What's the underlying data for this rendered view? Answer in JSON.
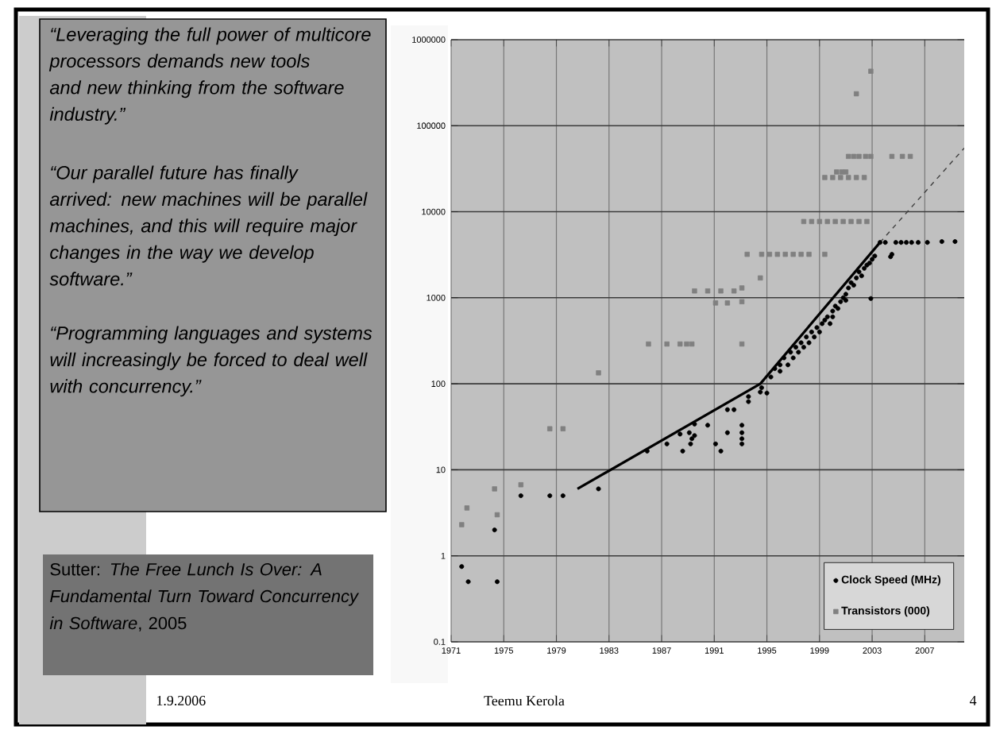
{
  "chart_data": {
    "type": "scatter",
    "xlim": [
      1971,
      2010
    ],
    "ylim": [
      0.1,
      1000000
    ],
    "log": "y",
    "grid": true,
    "legend": "bottom right",
    "xticks": [
      1971,
      1975,
      1979,
      1983,
      1987,
      1991,
      1995,
      1999,
      2003,
      2007
    ],
    "yticks": [
      0.1,
      1,
      10,
      100,
      1000,
      10000,
      100000,
      1000000
    ],
    "series": [
      {
        "name": "Clock Speed (MHz)",
        "marker": "circle",
        "color": "#000000",
        "x": [
          1971.8,
          1972.3,
          1974.3,
          1974.5,
          1976.3,
          1978.5,
          1979.5,
          1982.2,
          1985.9,
          1987.4,
          1988.4,
          1988.6,
          1989.1,
          1989.2,
          1989.3,
          1989.5,
          1989.5,
          1990.5,
          1991.1,
          1991.5,
          1992.0,
          1992.0,
          1992.5,
          1993.1,
          1993.1,
          1993.1,
          1993.1,
          1993.6,
          1993.6,
          1994.5,
          1994.6,
          1995.0,
          1995.3,
          1995.6,
          1996.0,
          1996.0,
          1996.3,
          1996.6,
          1996.8,
          1997.0,
          1997.2,
          1997.4,
          1997.6,
          1997.8,
          1998.0,
          1998.2,
          1998.4,
          1998.6,
          1998.8,
          1999.0,
          1999.2,
          1999.4,
          1999.6,
          1999.8,
          2000.0,
          2000.0,
          2000.2,
          2000.4,
          2000.6,
          2000.8,
          2001.0,
          2001.0,
          2001.2,
          2001.4,
          2001.6,
          2001.8,
          2002.0,
          2002.2,
          2002.4,
          2002.6,
          2002.8,
          2002.9,
          2003.0,
          2003.2,
          2003.6,
          2004.0,
          2004.4,
          2004.5,
          2004.8,
          2005.2,
          2005.6,
          2006.0,
          2006.5,
          2007.2,
          2008.3,
          2009.3
        ],
        "values": [
          0.75,
          0.5,
          2,
          0.5,
          5,
          5,
          5,
          6,
          16.5,
          20,
          26,
          16.5,
          27,
          20,
          23,
          34,
          25,
          33,
          20,
          16.5,
          27,
          50,
          50,
          33,
          27,
          23,
          20,
          62,
          71,
          80,
          90,
          78,
          120,
          150,
          140,
          166,
          200,
          166,
          233,
          200,
          266,
          233,
          300,
          266,
          350,
          300,
          400,
          350,
          450,
          400,
          500,
          550,
          600,
          500,
          700,
          600,
          800,
          750,
          900,
          1000,
          1100,
          933,
          1300,
          1500,
          1400,
          1700,
          2000,
          1800,
          2200,
          2400,
          2530,
          980,
          2800,
          3060,
          4400,
          4400,
          3000,
          3200,
          4400,
          4400,
          4400,
          4400,
          4400,
          4400,
          4500,
          4500
        ]
      },
      {
        "name": "Transistors (000)",
        "marker": "square",
        "color": "#808080",
        "x": [
          1971.8,
          1972.2,
          1974.3,
          1974.5,
          1976.3,
          1978.5,
          1979.5,
          1982.2,
          1986.0,
          1987.4,
          1988.4,
          1988.9,
          1989.3,
          1989.5,
          1990.5,
          1991.1,
          1991.5,
          1992.0,
          1992.5,
          1993.1,
          1993.1,
          1993.1,
          1993.5,
          1994.5,
          1994.6,
          1995.2,
          1995.8,
          1996.4,
          1997.0,
          1997.6,
          1998.2,
          1999.4,
          1997.8,
          1998.4,
          1999.0,
          1999.6,
          2000.2,
          2000.8,
          2001.4,
          2002.0,
          2002.6,
          1999.4,
          2000.0,
          2000.6,
          2001.2,
          2001.8,
          2002.4,
          2000.3,
          2000.7,
          2001.0,
          2001.2,
          2001.6,
          2002.0,
          2002.5,
          2002.9,
          2004.5,
          2005.3,
          2005.9,
          2001.8,
          2002.9
        ],
        "values": [
          2.3,
          3.6,
          6,
          3,
          6.7,
          30,
          30,
          134,
          290,
          290,
          290,
          290,
          290,
          1200,
          1200,
          870,
          1200,
          870,
          1200,
          900,
          1300,
          290,
          3200,
          1700,
          3200,
          3200,
          3200,
          3200,
          3200,
          3200,
          3200,
          3200,
          7700,
          7700,
          7700,
          7700,
          7700,
          7700,
          7700,
          7700,
          7700,
          25000,
          25000,
          25000,
          25000,
          25000,
          25000,
          29000,
          29000,
          29000,
          44000,
          44000,
          44000,
          44000,
          44000,
          44000,
          44000,
          44000,
          235000,
          430000
        ]
      },
      {
        "type": "line",
        "color": "#000000",
        "line_style": "solid",
        "x": [
          1980.6,
          1994.5,
          2003.6
        ],
        "values": [
          6,
          100,
          4400
        ]
      },
      {
        "type": "line",
        "color": "#404040",
        "line_style": "dashed",
        "x": [
          2003.6,
          2010
        ],
        "values": [
          4400,
          55000
        ]
      }
    ],
    "annotations": [
      "“Leveraging the full power of multicore processors demands new tools and new thinking from the software industry.”",
      "“Our parallel future has finally arrived: new machines will be parallel machines, and this will require major changes in the way we develop software.”",
      "“Programming languages and systems will increasingly be forced to deal well with concurrency.”",
      "Sutter: *The Free Lunch Is Over: A Fundamental Turn Toward Concurrency in Software*, 2005",
      "1.9.2006",
      "Teemu Kerola",
      "4"
    ]
  }
}
